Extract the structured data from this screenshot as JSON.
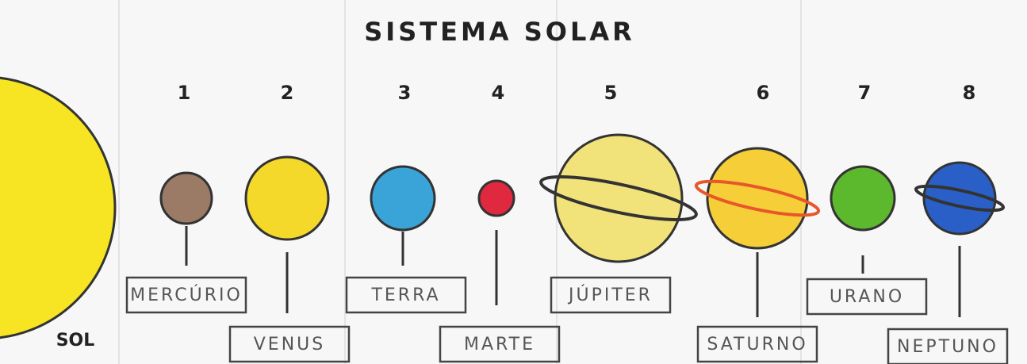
{
  "title": "SISTEMA SOLAR",
  "sun": {
    "label": "SOL"
  },
  "planets": [
    {
      "number": 1,
      "name": "MERCÚRIO"
    },
    {
      "number": 2,
      "name": "VENUS"
    },
    {
      "number": 3,
      "name": "TERRA"
    },
    {
      "number": 4,
      "name": "MARTE"
    },
    {
      "number": 5,
      "name": "JÚPITER"
    },
    {
      "number": 6,
      "name": "SATURNO"
    },
    {
      "number": 7,
      "name": "URANO"
    },
    {
      "number": 8,
      "name": "NEPTUNO"
    }
  ]
}
